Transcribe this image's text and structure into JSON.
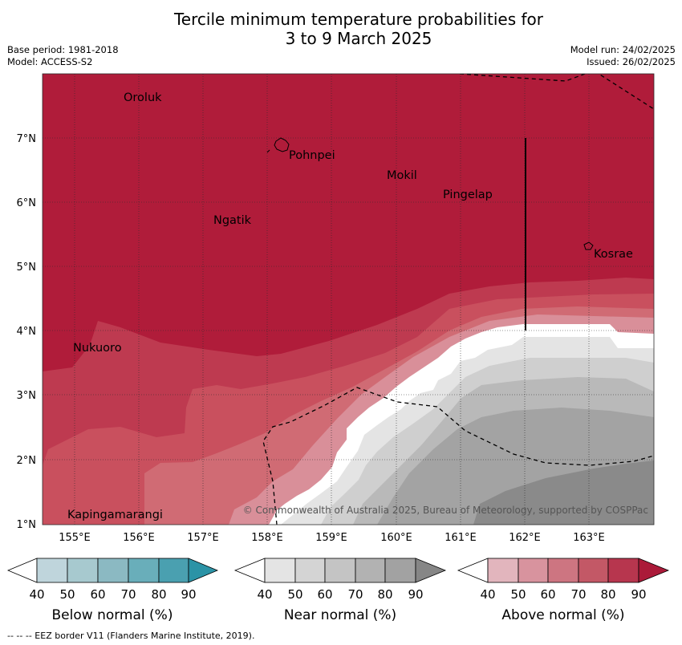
{
  "title": {
    "line1": "Tercile minimum temperature probabilities for",
    "line2": "3 to 9 March 2025"
  },
  "meta": {
    "base_period": "Base period: 1981-2018",
    "model": "Model: ACCESS-S2",
    "model_run": "Model run: 24/02/2025",
    "issued": "Issued: 26/02/2025"
  },
  "map": {
    "lon_labels": [
      "155°E",
      "156°E",
      "157°E",
      "158°E",
      "159°E",
      "160°E",
      "161°E",
      "162°E",
      "163°E"
    ],
    "lat_labels": [
      "7°N",
      "6°N",
      "5°N",
      "4°N",
      "3°N",
      "2°N",
      "1°N"
    ],
    "places": [
      "Oroluk",
      "Pohnpei",
      "Mokil",
      "Pingelap",
      "Ngatik",
      "Kosrae",
      "Nukuoro",
      "Kapingamarangi"
    ],
    "copyright": "© Commonwealth of Australia 2025, Bureau of Meteorology, supported by COSPPac"
  },
  "legend": {
    "ticks": [
      "40",
      "50",
      "60",
      "70",
      "80",
      "90"
    ],
    "below": {
      "title": "Below normal (%)",
      "colors": [
        "#ffffff",
        "#bfd5dc",
        "#a7c9cf",
        "#8bb9c2",
        "#69aeba",
        "#4aa0b0",
        "#2b93a6"
      ]
    },
    "near": {
      "title": "Near normal (%)",
      "colors": [
        "#ffffff",
        "#e4e4e4",
        "#d4d4d4",
        "#c4c4c4",
        "#b2b2b2",
        "#a2a2a2",
        "#868686"
      ]
    },
    "above": {
      "title": "Above normal (%)",
      "colors": [
        "#ffffff",
        "#e2b5bd",
        "#d8939e",
        "#cd7581",
        "#c35866",
        "#b7364e",
        "#ab1a39"
      ]
    }
  },
  "footer": "--  --  -- EEZ border V11 (Flanders Marine Institute, 2019)."
}
